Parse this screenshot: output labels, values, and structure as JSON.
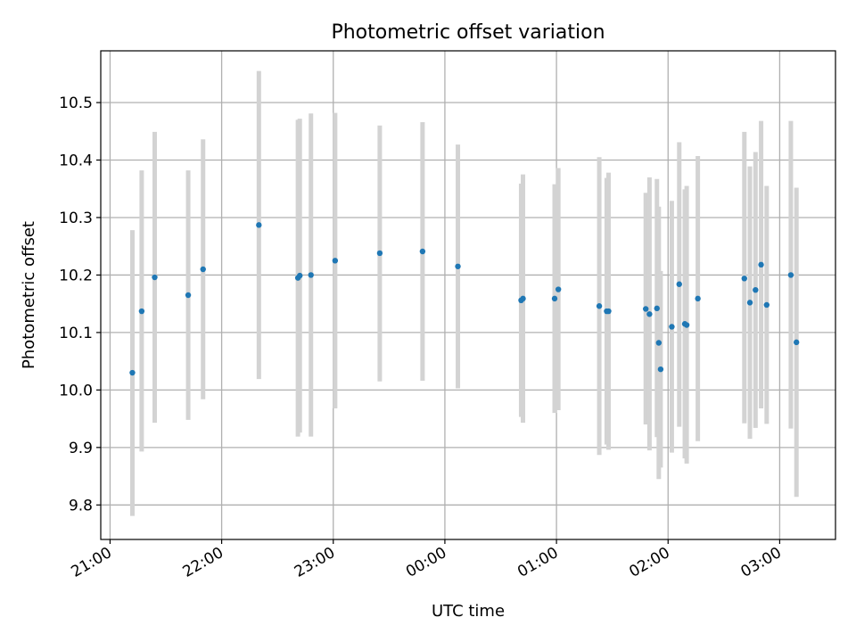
{
  "chart_data": {
    "type": "scatter",
    "title": "Photometric offset variation",
    "xlabel": "UTC time",
    "ylabel": "Photometric offset",
    "xlim": [
      "20:55",
      "27:30"
    ],
    "ylim": [
      9.74,
      10.59
    ],
    "x_ticks": [
      {
        "value": "21:00",
        "label": "21:00"
      },
      {
        "value": "22:00",
        "label": "22:00"
      },
      {
        "value": "23:00",
        "label": "23:00"
      },
      {
        "value": "24:00",
        "label": "00:00"
      },
      {
        "value": "25:00",
        "label": "01:00"
      },
      {
        "value": "26:00",
        "label": "02:00"
      },
      {
        "value": "27:00",
        "label": "03:00"
      }
    ],
    "y_ticks": [
      "9.8",
      "9.9",
      "10.0",
      "10.1",
      "10.2",
      "10.3",
      "10.4",
      "10.5"
    ],
    "grid": true,
    "colors": {
      "points": "#1f77b4",
      "error_bars": "#d3d3d3"
    },
    "points": [
      {
        "x": "21:12",
        "y": 10.03,
        "lo": 9.781,
        "hi": 10.278
      },
      {
        "x": "21:17",
        "y": 10.137,
        "lo": 9.893,
        "hi": 10.382
      },
      {
        "x": "21:24",
        "y": 10.196,
        "lo": 9.943,
        "hi": 10.449
      },
      {
        "x": "21:42",
        "y": 10.165,
        "lo": 9.948,
        "hi": 10.382
      },
      {
        "x": "21:50",
        "y": 10.21,
        "lo": 9.984,
        "hi": 10.436
      },
      {
        "x": "22:20",
        "y": 10.287,
        "lo": 10.019,
        "hi": 10.555
      },
      {
        "x": "22:41",
        "y": 10.195,
        "lo": 9.919,
        "hi": 10.47
      },
      {
        "x": "22:42",
        "y": 10.199,
        "lo": 9.926,
        "hi": 10.472
      },
      {
        "x": "22:48",
        "y": 10.2,
        "lo": 9.919,
        "hi": 10.481
      },
      {
        "x": "23:01",
        "y": 10.225,
        "lo": 9.968,
        "hi": 10.482
      },
      {
        "x": "23:25",
        "y": 10.238,
        "lo": 10.015,
        "hi": 10.46
      },
      {
        "x": "23:48",
        "y": 10.241,
        "lo": 10.016,
        "hi": 10.466
      },
      {
        "x": "24:07",
        "y": 10.215,
        "lo": 10.003,
        "hi": 10.427
      },
      {
        "x": "24:41",
        "y": 10.156,
        "lo": 9.953,
        "hi": 10.359
      },
      {
        "x": "24:42",
        "y": 10.159,
        "lo": 9.943,
        "hi": 10.375
      },
      {
        "x": "24:59",
        "y": 10.159,
        "lo": 9.96,
        "hi": 10.358
      },
      {
        "x": "25:01",
        "y": 10.175,
        "lo": 9.965,
        "hi": 10.386
      },
      {
        "x": "25:23",
        "y": 10.146,
        "lo": 9.887,
        "hi": 10.405
      },
      {
        "x": "25:27",
        "y": 10.137,
        "lo": 9.905,
        "hi": 10.369
      },
      {
        "x": "25:28",
        "y": 10.137,
        "lo": 9.896,
        "hi": 10.378
      },
      {
        "x": "25:48",
        "y": 10.141,
        "lo": 9.94,
        "hi": 10.343
      },
      {
        "x": "25:50",
        "y": 10.132,
        "lo": 9.895,
        "hi": 10.37
      },
      {
        "x": "25:54",
        "y": 10.142,
        "lo": 9.918,
        "hi": 10.367
      },
      {
        "x": "25:55",
        "y": 10.082,
        "lo": 9.845,
        "hi": 10.319
      },
      {
        "x": "25:56",
        "y": 10.036,
        "lo": 9.865,
        "hi": 10.207
      },
      {
        "x": "26:02",
        "y": 10.11,
        "lo": 9.891,
        "hi": 10.329
      },
      {
        "x": "26:06",
        "y": 10.184,
        "lo": 9.936,
        "hi": 10.431
      },
      {
        "x": "26:09",
        "y": 10.115,
        "lo": 9.881,
        "hi": 10.349
      },
      {
        "x": "26:10",
        "y": 10.113,
        "lo": 9.872,
        "hi": 10.355
      },
      {
        "x": "26:16",
        "y": 10.159,
        "lo": 9.911,
        "hi": 10.407
      },
      {
        "x": "26:41",
        "y": 10.194,
        "lo": 9.942,
        "hi": 10.449
      },
      {
        "x": "26:44",
        "y": 10.152,
        "lo": 9.915,
        "hi": 10.389
      },
      {
        "x": "26:47",
        "y": 10.174,
        "lo": 9.934,
        "hi": 10.414
      },
      {
        "x": "26:50",
        "y": 10.218,
        "lo": 9.968,
        "hi": 10.468
      },
      {
        "x": "26:53",
        "y": 10.148,
        "lo": 9.941,
        "hi": 10.355
      },
      {
        "x": "27:06",
        "y": 10.2,
        "lo": 9.933,
        "hi": 10.468
      },
      {
        "x": "27:09",
        "y": 10.083,
        "lo": 9.814,
        "hi": 10.352
      }
    ]
  }
}
